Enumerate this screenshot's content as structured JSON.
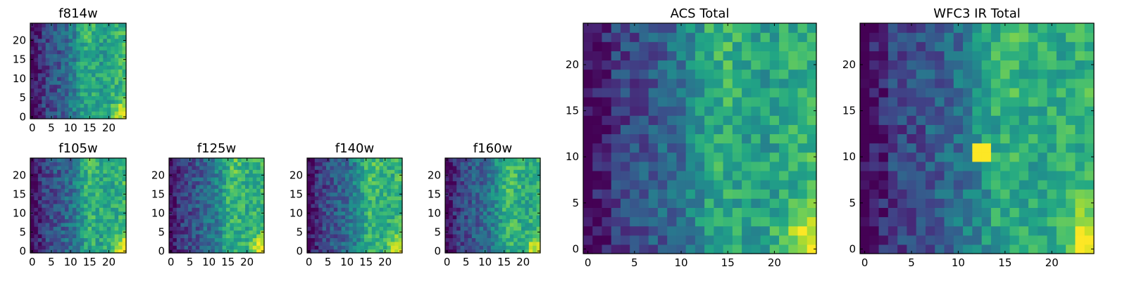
{
  "figure": {
    "colormap": "viridis",
    "background": "#ffffff",
    "frame_color": "#000000"
  },
  "chart_data": [
    {
      "type": "heatmap",
      "title": "f814w",
      "xlabel": "",
      "ylabel": "",
      "grid_size": [
        25,
        25
      ],
      "xlim": [
        -0.5,
        24.5
      ],
      "ylim": [
        -0.5,
        24.5
      ],
      "xticks": [
        "0",
        "5",
        "10",
        "15",
        "20"
      ],
      "yticks": [
        "0",
        "5",
        "10",
        "15",
        "20"
      ],
      "origin": "lower",
      "intensity_seed": 11,
      "pattern": {
        "bright_band_x": 14,
        "bright_corner": "bottom-right",
        "dark_edge": "left"
      }
    },
    {
      "type": "heatmap",
      "title": "f105w",
      "xlabel": "",
      "ylabel": "",
      "grid_size": [
        25,
        25
      ],
      "xlim": [
        -0.5,
        24.5
      ],
      "ylim": [
        -0.5,
        24.5
      ],
      "xticks": [
        "0",
        "5",
        "10",
        "15",
        "20"
      ],
      "yticks": [
        "0",
        "5",
        "10",
        "15",
        "20"
      ],
      "origin": "lower",
      "intensity_seed": 23,
      "pattern": {
        "bright_band_x": 15,
        "bright_corner": "bottom-right",
        "dark_edge": "left"
      }
    },
    {
      "type": "heatmap",
      "title": "f125w",
      "xlabel": "",
      "ylabel": "",
      "grid_size": [
        25,
        25
      ],
      "xlim": [
        -0.5,
        24.5
      ],
      "ylim": [
        -0.5,
        24.5
      ],
      "xticks": [
        "0",
        "5",
        "10",
        "15",
        "20"
      ],
      "yticks": [
        "0",
        "5",
        "10",
        "15",
        "20"
      ],
      "origin": "lower",
      "intensity_seed": 37,
      "pattern": {
        "bright_band_x": 16,
        "bright_corner": "bottom-right",
        "dark_edge": "left"
      }
    },
    {
      "type": "heatmap",
      "title": "f140w",
      "xlabel": "",
      "ylabel": "",
      "grid_size": [
        25,
        25
      ],
      "xlim": [
        -0.5,
        24.5
      ],
      "ylim": [
        -0.5,
        24.5
      ],
      "xticks": [
        "0",
        "5",
        "10",
        "15",
        "20"
      ],
      "yticks": [
        "0",
        "5",
        "10",
        "15",
        "20"
      ],
      "origin": "lower",
      "intensity_seed": 41,
      "pattern": {
        "bright_band_x": 16,
        "bright_corner": "bottom-right",
        "dark_edge": "left"
      }
    },
    {
      "type": "heatmap",
      "title": "f160w",
      "xlabel": "",
      "ylabel": "",
      "grid_size": [
        25,
        25
      ],
      "xlim": [
        -0.5,
        24.5
      ],
      "ylim": [
        -0.5,
        24.5
      ],
      "xticks": [
        "0",
        "5",
        "10",
        "15",
        "20"
      ],
      "yticks": [
        "0",
        "5",
        "10",
        "15",
        "20"
      ],
      "origin": "lower",
      "intensity_seed": 53,
      "pattern": {
        "bright_band_x": 16,
        "bright_corner": "bottom-right",
        "dark_edge": "left"
      }
    },
    {
      "type": "heatmap",
      "title": "ACS Total",
      "xlabel": "",
      "ylabel": "",
      "grid_size": [
        25,
        25
      ],
      "xlim": [
        -0.5,
        24.5
      ],
      "ylim": [
        -0.5,
        24.5
      ],
      "xticks": [
        "0",
        "5",
        "10",
        "15",
        "20"
      ],
      "yticks": [
        "0",
        "5",
        "10",
        "15",
        "20"
      ],
      "origin": "lower",
      "intensity_seed": 67,
      "pattern": {
        "bright_band_x": 14,
        "bright_corner": "bottom-right",
        "dark_edge": "left"
      }
    },
    {
      "type": "heatmap",
      "title": "WFC3 IR Total",
      "xlabel": "",
      "ylabel": "",
      "grid_size": [
        25,
        25
      ],
      "xlim": [
        -0.5,
        24.5
      ],
      "ylim": [
        -0.5,
        24.5
      ],
      "xticks": [
        "0",
        "5",
        "10",
        "15",
        "20"
      ],
      "yticks": [
        "0",
        "5",
        "10",
        "15",
        "20"
      ],
      "origin": "lower",
      "intensity_seed": 79,
      "pattern": {
        "bright_band_x": 15,
        "bright_corner": "bottom-right",
        "dark_edge": "left",
        "hot_pixel": [
          12,
          11
        ]
      }
    }
  ]
}
